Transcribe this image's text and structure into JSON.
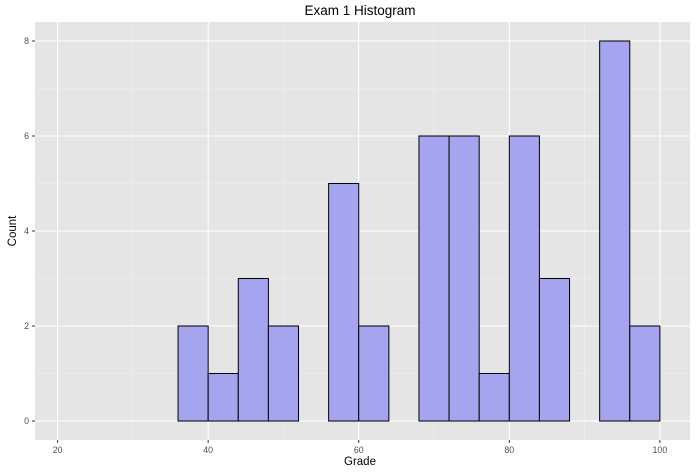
{
  "chart_data": {
    "type": "bar",
    "title": "Exam 1 Histogram",
    "xlabel": "Grade",
    "ylabel": "Count",
    "bin_width": 4,
    "bins": [
      {
        "x0": 20,
        "x1": 24,
        "count": 0
      },
      {
        "x0": 24,
        "x1": 28,
        "count": 0
      },
      {
        "x0": 28,
        "x1": 32,
        "count": 0
      },
      {
        "x0": 32,
        "x1": 36,
        "count": 0
      },
      {
        "x0": 36,
        "x1": 40,
        "count": 2
      },
      {
        "x0": 40,
        "x1": 44,
        "count": 1
      },
      {
        "x0": 44,
        "x1": 48,
        "count": 3
      },
      {
        "x0": 48,
        "x1": 52,
        "count": 2
      },
      {
        "x0": 52,
        "x1": 56,
        "count": 0
      },
      {
        "x0": 56,
        "x1": 60,
        "count": 5
      },
      {
        "x0": 60,
        "x1": 64,
        "count": 2
      },
      {
        "x0": 64,
        "x1": 68,
        "count": 0
      },
      {
        "x0": 68,
        "x1": 72,
        "count": 6
      },
      {
        "x0": 72,
        "x1": 76,
        "count": 6
      },
      {
        "x0": 76,
        "x1": 80,
        "count": 1
      },
      {
        "x0": 80,
        "x1": 84,
        "count": 6
      },
      {
        "x0": 84,
        "x1": 88,
        "count": 3
      },
      {
        "x0": 88,
        "x1": 92,
        "count": 0
      },
      {
        "x0": 92,
        "x1": 96,
        "count": 8
      },
      {
        "x0": 96,
        "x1": 100,
        "count": 2
      }
    ],
    "xlim": [
      17,
      104
    ],
    "ylim": [
      -0.4,
      8.4
    ],
    "x_ticks": [
      20,
      40,
      60,
      80,
      100
    ],
    "y_ticks": [
      0,
      2,
      4,
      6,
      8
    ],
    "grid": true,
    "colors": {
      "bar_fill": "#a4a4ef",
      "bar_stroke": "#000000",
      "panel_bg": "#e5e5e5",
      "grid_major": "#ffffff",
      "tick_label": "#4d4d4d"
    }
  }
}
